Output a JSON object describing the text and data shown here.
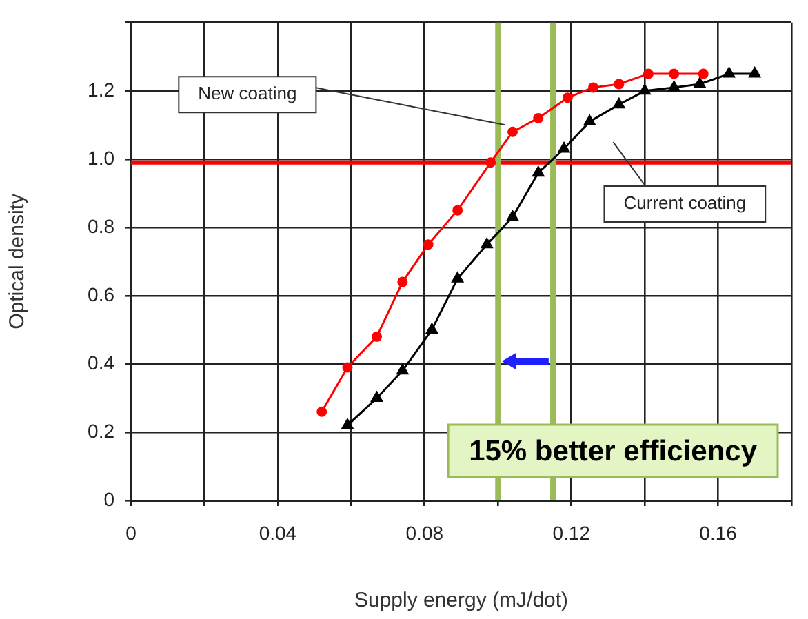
{
  "chart_data": {
    "type": "line",
    "xlabel": "Supply energy (mJ/dot)",
    "ylabel": "Optical density",
    "xlim": [
      0,
      0.18
    ],
    "xticks": [
      0,
      {
        "value": 0.02,
        "label": null
      },
      0.04,
      {
        "value": 0.06,
        "label": null
      },
      0.08,
      {
        "value": 0.1,
        "label": null
      },
      0.12,
      {
        "value": 0.14,
        "label": null
      },
      0.16,
      {
        "value": 0.18,
        "label": null
      }
    ],
    "ylim": [
      0,
      1.4
    ],
    "yticks": [
      0,
      0.2,
      0.4,
      0.6,
      0.8,
      {
        "value": 1,
        "label": "1.0"
      },
      1.2,
      {
        "value": 1.4,
        "label": null
      }
    ],
    "grid": true,
    "legend": false,
    "series": [
      {
        "color": "#ff0000",
        "marker": "circle",
        "x": [
          0.052,
          0.059,
          0.067,
          0.074,
          0.081,
          0.089,
          0.098,
          0.104,
          0.111,
          0.119,
          0.126,
          0.133,
          0.141,
          0.148,
          0.156
        ],
        "values": [
          0.26,
          0.39,
          0.48,
          0.64,
          0.75,
          0.85,
          0.99,
          1.08,
          1.12,
          1.18,
          1.21,
          1.22,
          1.25,
          1.25,
          1.25
        ]
      },
      {
        "color": "#000000",
        "marker": "triangle",
        "x": [
          0.059,
          0.067,
          0.074,
          0.082,
          0.089,
          0.097,
          0.104,
          0.111,
          0.118,
          0.125,
          0.133,
          0.14,
          0.148,
          0.155,
          0.163,
          0.17
        ],
        "values": [
          0.22,
          0.3,
          0.38,
          0.5,
          0.65,
          0.75,
          0.83,
          0.96,
          1.03,
          1.11,
          1.16,
          1.2,
          1.21,
          1.22,
          1.25,
          1.25
        ]
      }
    ],
    "ref_lines": [
      {
        "axis": "y",
        "value": 0.99,
        "color": "#ff0000"
      },
      {
        "axis": "x",
        "value": 0.1,
        "color": "#9bbb59"
      },
      {
        "axis": "x",
        "value": 0.115,
        "color": "#9bbb59"
      }
    ],
    "annotations": [
      {
        "text": "New coating",
        "x": 0.102,
        "y": 1.1
      },
      "Current coating",
      "15% better efficiency"
    ]
  }
}
